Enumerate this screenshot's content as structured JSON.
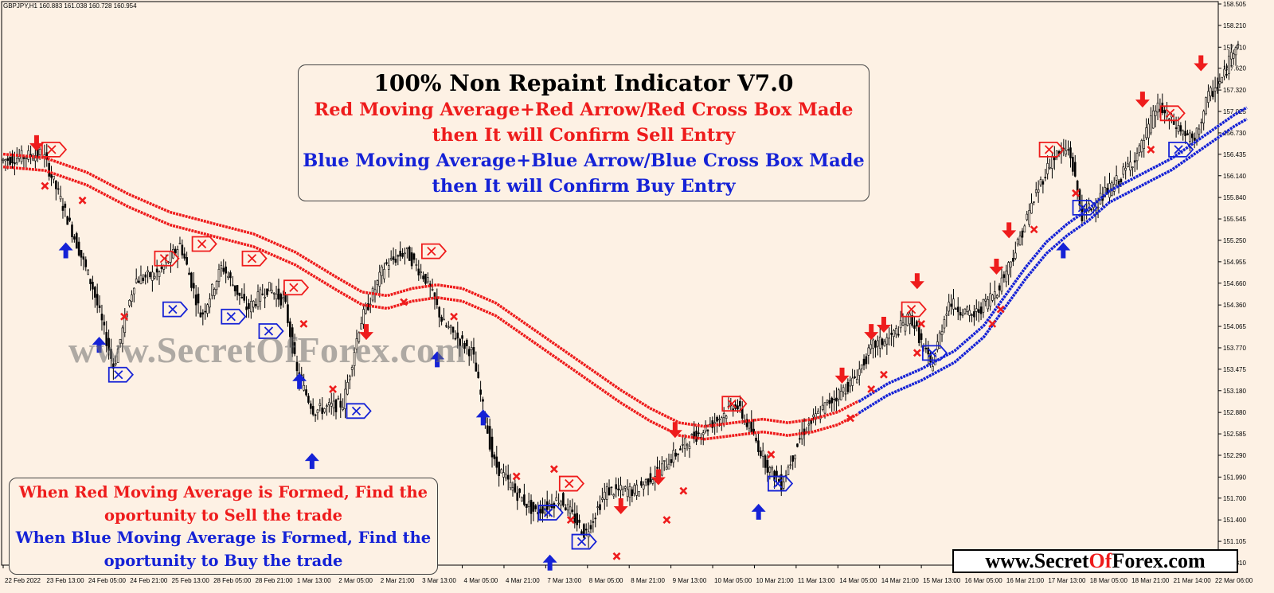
{
  "symbol_info": {
    "symbol": "GBPJPY,H1",
    "ohlc": "160.883 161.038 160.728 160.954"
  },
  "info_box": {
    "title": "100% Non Repaint Indicator V7.0",
    "sell_line1": "Red Moving Average+Red Arrow/Red Cross Box Made",
    "sell_line2": "then It will Confirm Sell Entry",
    "buy_line1": "Blue Moving Average+Blue Arrow/Blue Cross Box Made",
    "buy_line2": "then It will Confirm Buy Entry"
  },
  "bottom_box": {
    "sell_line1": "When Red Moving Average is Formed, Find the",
    "sell_line2": "oportunity to Sell the trade",
    "buy_line1": "When Blue Moving Average is Formed, Find the",
    "buy_line2": "oportunity to Buy the trade"
  },
  "watermark": "www.SecretOfForex.com",
  "brand": {
    "part1": "www.Secret",
    "part2": "Of",
    "part3": "Forex.com"
  },
  "colors": {
    "background": "#fdf1e4",
    "sell": "#ee1c1c",
    "buy": "#1522d6",
    "candle": "#000000"
  },
  "chart_data": {
    "type": "candlestick",
    "symbol": "GBPJPY",
    "timeframe": "H1",
    "y_axis": {
      "side": "right",
      "ylim": [
        150.81,
        158.505
      ],
      "ticks": [
        158.505,
        158.21,
        157.91,
        157.62,
        157.32,
        157.025,
        156.73,
        156.435,
        156.14,
        155.84,
        155.545,
        155.25,
        154.955,
        154.66,
        154.36,
        154.065,
        153.77,
        153.475,
        153.18,
        152.88,
        152.585,
        152.29,
        151.99,
        151.7,
        151.4,
        151.105,
        150.81
      ]
    },
    "x_axis": {
      "labels": [
        "22 Feb 2022",
        "23 Feb 13:00",
        "24 Feb 05:00",
        "24 Feb 21:00",
        "25 Feb 13:00",
        "28 Feb 05:00",
        "28 Feb 21:00",
        "1 Mar 13:00",
        "2 Mar 05:00",
        "2 Mar 21:00",
        "3 Mar 13:00",
        "4 Mar 05:00",
        "4 Mar 21:00",
        "7 Mar 13:00",
        "8 Mar 05:00",
        "8 Mar 21:00",
        "9 Mar 13:00",
        "10 Mar 05:00",
        "10 Mar 21:00",
        "11 Mar 13:00",
        "14 Mar 05:00",
        "14 Mar 21:00",
        "15 Mar 13:00",
        "16 Mar 05:00",
        "16 Mar 21:00",
        "17 Mar 13:00",
        "18 Mar 05:00",
        "18 Mar 21:00",
        "21 Mar 14:00",
        "22 Mar 06:00"
      ]
    },
    "price_path": [
      [
        0,
        156.35
      ],
      [
        1,
        156.45
      ],
      [
        1.5,
        155.7
      ],
      [
        2.2,
        154.6
      ],
      [
        2.7,
        153.5
      ],
      [
        3.2,
        154.7
      ],
      [
        3.8,
        154.8
      ],
      [
        4.3,
        155.2
      ],
      [
        4.8,
        154.2
      ],
      [
        5.3,
        154.9
      ],
      [
        5.9,
        154.3
      ],
      [
        6.4,
        154.6
      ],
      [
        6.8,
        154.4
      ],
      [
        7.1,
        153.4
      ],
      [
        7.5,
        152.9
      ],
      [
        8.2,
        153.0
      ],
      [
        8.6,
        154.1
      ],
      [
        9.2,
        154.9
      ],
      [
        9.7,
        155.1
      ],
      [
        10.2,
        154.7
      ],
      [
        10.6,
        154.1
      ],
      [
        11.3,
        153.7
      ],
      [
        11.8,
        152.2
      ],
      [
        12.3,
        151.8
      ],
      [
        12.8,
        151.5
      ],
      [
        13.4,
        151.7
      ],
      [
        14.0,
        151.2
      ],
      [
        14.5,
        151.8
      ],
      [
        15.2,
        151.8
      ],
      [
        15.8,
        152.1
      ],
      [
        16.5,
        152.5
      ],
      [
        17.2,
        152.8
      ],
      [
        17.6,
        153.0
      ],
      [
        18.0,
        152.6
      ],
      [
        18.4,
        152.1
      ],
      [
        18.7,
        151.9
      ],
      [
        19.2,
        152.6
      ],
      [
        19.8,
        153.0
      ],
      [
        20.4,
        153.3
      ],
      [
        20.9,
        153.8
      ],
      [
        21.3,
        153.9
      ],
      [
        21.8,
        154.2
      ],
      [
        22.3,
        153.5
      ],
      [
        22.7,
        154.4
      ],
      [
        23.3,
        154.2
      ],
      [
        23.9,
        154.6
      ],
      [
        24.3,
        155.1
      ],
      [
        24.8,
        155.9
      ],
      [
        25.2,
        156.4
      ],
      [
        25.6,
        156.5
      ],
      [
        25.9,
        155.6
      ],
      [
        26.3,
        155.8
      ],
      [
        26.8,
        156.1
      ],
      [
        27.3,
        156.5
      ],
      [
        27.7,
        157.1
      ],
      [
        28.2,
        156.8
      ],
      [
        28.6,
        156.6
      ],
      [
        28.9,
        157.2
      ],
      [
        29.3,
        157.5
      ],
      [
        29.6,
        158.0
      ]
    ],
    "series": [
      {
        "name": "Red Moving Average",
        "role": "sell",
        "points": [
          [
            0,
            156.35
          ],
          [
            1,
            156.3
          ],
          [
            2,
            156.1
          ],
          [
            3,
            155.8
          ],
          [
            4,
            155.55
          ],
          [
            5,
            155.4
          ],
          [
            6,
            155.25
          ],
          [
            7,
            155.0
          ],
          [
            8,
            154.65
          ],
          [
            8.6,
            154.45
          ],
          [
            9.2,
            154.4
          ],
          [
            9.8,
            154.5
          ],
          [
            10.4,
            154.55
          ],
          [
            11,
            154.5
          ],
          [
            11.8,
            154.3
          ],
          [
            12.8,
            153.9
          ],
          [
            13.8,
            153.5
          ],
          [
            14.8,
            153.1
          ],
          [
            15.5,
            152.85
          ],
          [
            16.2,
            152.65
          ],
          [
            16.8,
            152.6
          ],
          [
            17.5,
            152.65
          ],
          [
            18.2,
            152.7
          ],
          [
            18.8,
            152.65
          ],
          [
            19.4,
            152.7
          ],
          [
            20.0,
            152.8
          ],
          [
            20.5,
            152.95
          ]
        ]
      },
      {
        "name": "Blue Moving Average",
        "role": "buy",
        "points": [
          [
            20.5,
            152.95
          ],
          [
            21.2,
            153.2
          ],
          [
            22.0,
            153.4
          ],
          [
            22.8,
            153.65
          ],
          [
            23.5,
            154.0
          ],
          [
            24.0,
            154.4
          ],
          [
            24.5,
            154.8
          ],
          [
            25.0,
            155.15
          ],
          [
            25.5,
            155.4
          ],
          [
            26.0,
            155.6
          ],
          [
            26.5,
            155.85
          ],
          [
            27.0,
            156.0
          ],
          [
            27.5,
            156.15
          ],
          [
            28.0,
            156.3
          ],
          [
            28.5,
            156.5
          ],
          [
            29.0,
            156.7
          ],
          [
            29.5,
            156.9
          ],
          [
            29.8,
            157.0
          ]
        ]
      }
    ],
    "signals": {
      "sell_arrows": [
        [
          0.8,
          156.5
        ],
        [
          8.7,
          153.9
        ],
        [
          16.1,
          152.55
        ],
        [
          15.7,
          151.9
        ],
        [
          14.8,
          151.5
        ],
        [
          20.1,
          153.3
        ],
        [
          20.8,
          153.9
        ],
        [
          21.1,
          154.0
        ],
        [
          21.9,
          154.6
        ],
        [
          23.8,
          154.8
        ],
        [
          24.1,
          155.3
        ],
        [
          27.3,
          157.1
        ],
        [
          28.7,
          157.6
        ]
      ],
      "buy_arrows": [
        [
          1.5,
          155.2
        ],
        [
          2.3,
          153.9
        ],
        [
          7.1,
          153.4
        ],
        [
          7.4,
          152.3
        ],
        [
          10.4,
          153.7
        ],
        [
          11.5,
          152.9
        ],
        [
          13.1,
          150.9
        ],
        [
          18.1,
          151.6
        ],
        [
          25.4,
          155.2
        ]
      ],
      "sell_boxes": [
        [
          1.2,
          156.5
        ],
        [
          3.9,
          155.0
        ],
        [
          4.8,
          155.2
        ],
        [
          6.0,
          155.0
        ],
        [
          7.0,
          154.6
        ],
        [
          10.3,
          155.1
        ],
        [
          13.6,
          151.9
        ],
        [
          17.5,
          153.0
        ],
        [
          21.8,
          154.3
        ],
        [
          25.1,
          156.5
        ],
        [
          28.0,
          157.0
        ]
      ],
      "buy_boxes": [
        [
          2.8,
          153.4
        ],
        [
          4.1,
          154.3
        ],
        [
          5.5,
          154.2
        ],
        [
          6.4,
          154.0
        ],
        [
          8.5,
          152.9
        ],
        [
          13.1,
          151.5
        ],
        [
          13.9,
          151.1
        ],
        [
          18.6,
          151.9
        ],
        [
          22.3,
          153.7
        ],
        [
          25.9,
          155.7
        ],
        [
          28.2,
          156.5
        ]
      ],
      "sell_crosses": [
        [
          1.0,
          156.0
        ],
        [
          1.9,
          155.8
        ],
        [
          2.9,
          154.2
        ],
        [
          7.2,
          154.1
        ],
        [
          7.9,
          153.2
        ],
        [
          9.6,
          154.4
        ],
        [
          10.8,
          154.2
        ],
        [
          12.3,
          152.0
        ],
        [
          13.2,
          152.1
        ],
        [
          13.6,
          151.4
        ],
        [
          14.7,
          150.9
        ],
        [
          15.9,
          151.4
        ],
        [
          16.3,
          151.8
        ],
        [
          18.4,
          152.3
        ],
        [
          20.3,
          152.8
        ],
        [
          20.8,
          153.2
        ],
        [
          21.1,
          153.4
        ],
        [
          21.9,
          153.7
        ],
        [
          22.0,
          154.1
        ],
        [
          23.7,
          154.1
        ],
        [
          23.9,
          154.3
        ],
        [
          24.7,
          155.4
        ],
        [
          25.7,
          155.9
        ],
        [
          27.5,
          156.5
        ]
      ]
    }
  }
}
